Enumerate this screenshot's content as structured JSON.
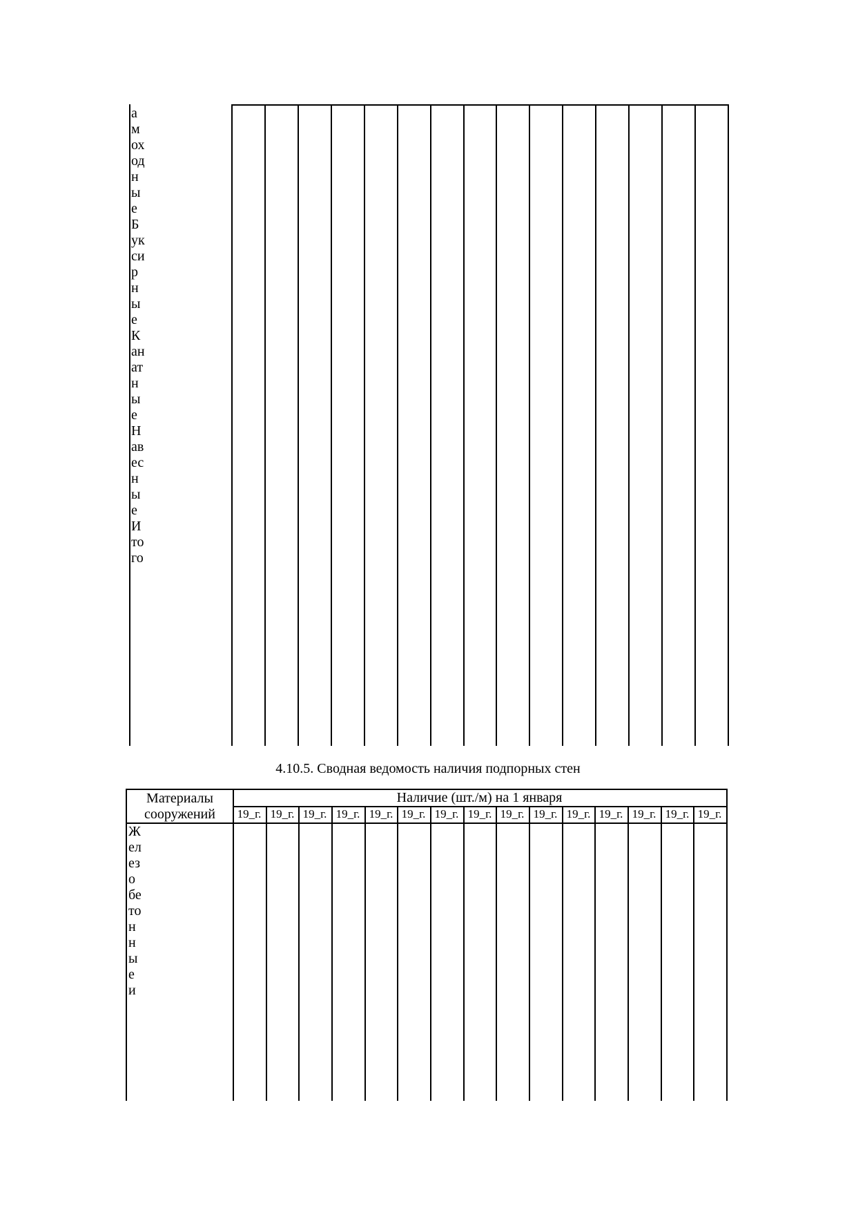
{
  "table1": {
    "row_label_vertical": "амоходныеБуксирныеКанатныеНавесныеИтого",
    "column_count": 15
  },
  "section_title": "4.10.5. Сводная ведомость наличия подпорных стен",
  "table2": {
    "header_col1_line1": "Материалы",
    "header_col1_line2": "сооружений",
    "header_group": "Наличие (шт./м) на 1 января",
    "year_labels": [
      "19_г.",
      "19_г.",
      "19_г.",
      "19_г.",
      "19_г.",
      "19_г.",
      "19_г.",
      "19_г.",
      "19_г.",
      "19_г.",
      "19_г.",
      "19_г.",
      "19_г.",
      "19_г.",
      "19_г."
    ],
    "row_label_vertical": "Железобетонные и"
  }
}
